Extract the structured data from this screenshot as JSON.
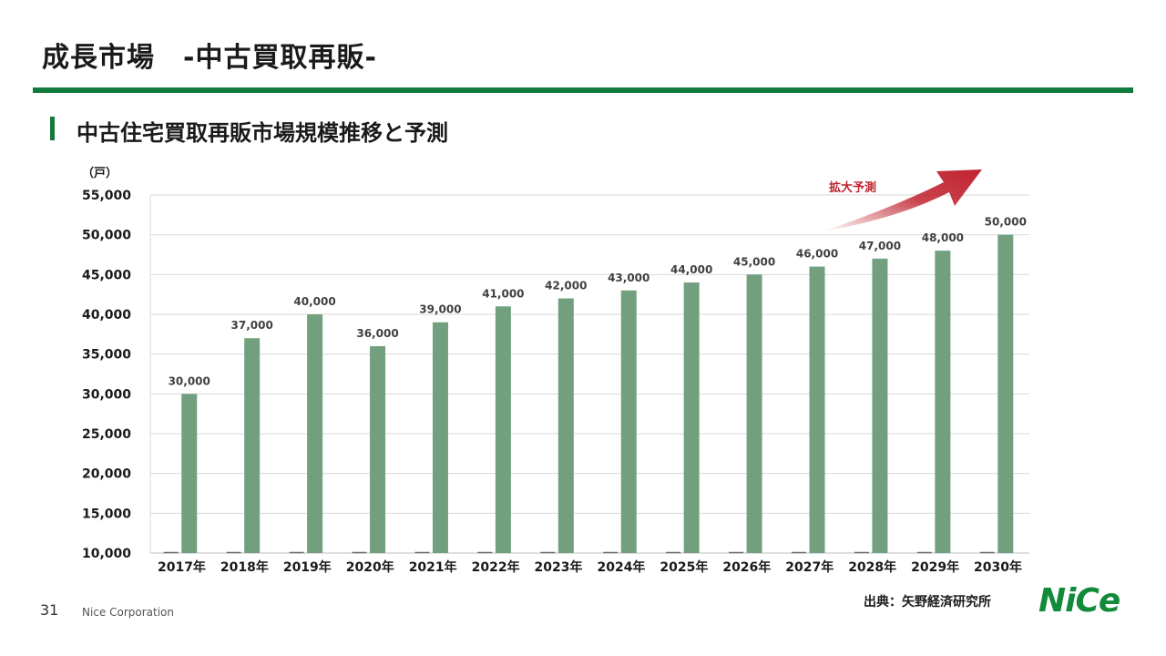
{
  "slide": {
    "title": "成長市場　-中古買取再販-",
    "section_heading": "中古住宅買取再販市場規模推移と予測",
    "source": "出典：矢野経済研究所",
    "page_number": "31",
    "company": "Nice Corporation",
    "logo_text": "NiCe"
  },
  "colors": {
    "accent": "#137a3e",
    "bar": "#72a07e",
    "arrow": "#c0232f",
    "grid": "#d9d9d9"
  },
  "chart_data": {
    "type": "bar",
    "unit_label": "（戸）",
    "categories": [
      "2017年",
      "2018年",
      "2019年",
      "2020年",
      "2021年",
      "2022年",
      "2023年",
      "2024年",
      "2025年",
      "2026年",
      "2027年",
      "2028年",
      "2029年",
      "2030年"
    ],
    "values": [
      30000,
      37000,
      40000,
      36000,
      39000,
      41000,
      42000,
      43000,
      44000,
      45000,
      46000,
      47000,
      48000,
      50000
    ],
    "data_labels": [
      "30,000",
      "37,000",
      "40,000",
      "36,000",
      "39,000",
      "41,000",
      "42,000",
      "43,000",
      "44,000",
      "45,000",
      "46,000",
      "47,000",
      "48,000",
      "50,000"
    ],
    "ylim": [
      10000,
      55000
    ],
    "y_ticks": [
      10000,
      15000,
      20000,
      25000,
      30000,
      35000,
      40000,
      45000,
      50000,
      55000
    ],
    "y_tick_labels": [
      "10,000",
      "15,000",
      "20,000",
      "25,000",
      "30,000",
      "35,000",
      "40,000",
      "45,000",
      "50,000",
      "55,000"
    ],
    "grid": true,
    "annotation": "拡大予測"
  }
}
